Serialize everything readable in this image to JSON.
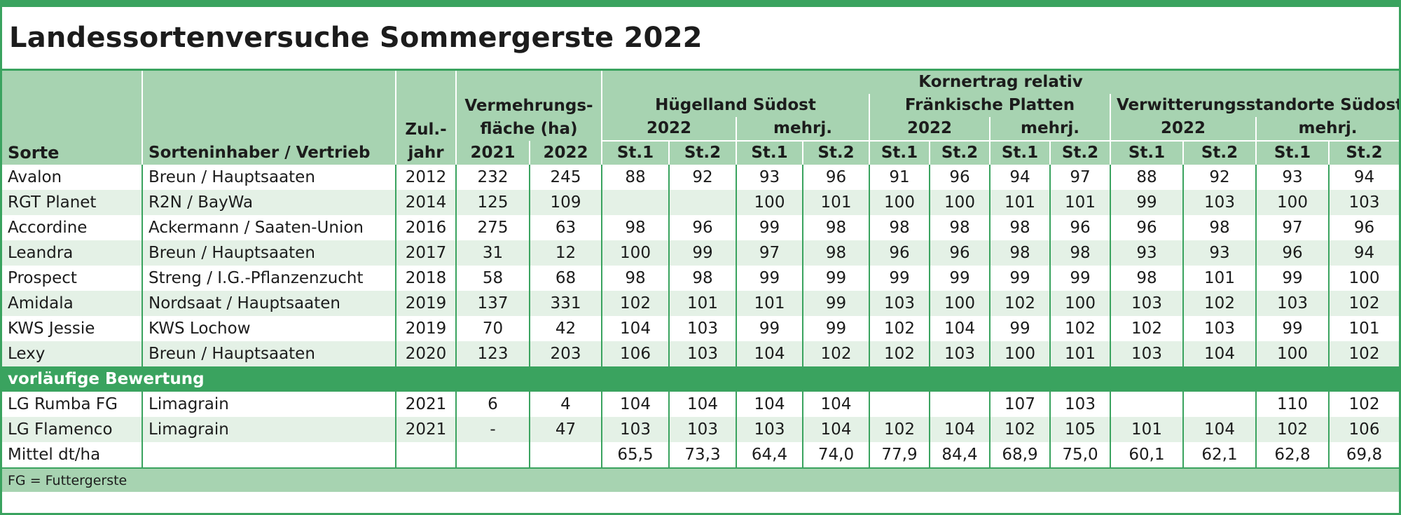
{
  "title": "Landessortenversuche Sommergerste 2022",
  "header": {
    "kornertrag": "Kornertrag  relativ",
    "vermehrung_line1": "Vermehrungs-",
    "vermehrung_line2": "fläche (ha)",
    "zul_line1": "Zul.-",
    "zul_line2": "jahr",
    "sorte": "Sorte",
    "inhaber": "Sorteninhaber / Vertrieb",
    "y2021": "2021",
    "y2022": "2022",
    "regions": [
      {
        "name": "Hügelland Südost",
        "sub_2022": "2022",
        "sub_mehrj": "mehrj."
      },
      {
        "name": "Fränkische Platten",
        "sub_2022": "2022",
        "sub_mehrj": "mehrj."
      },
      {
        "name": "Verwitterungsstandorte Südost",
        "sub_2022": "2022",
        "sub_mehrj": "mehrj."
      }
    ],
    "st1": "St.1",
    "st2": "St.2"
  },
  "rows": [
    {
      "sorte": "Avalon",
      "inhaber": "Breun / Hauptsaaten",
      "jahr": "2012",
      "v2021": "232",
      "v2022": "245",
      "vals": [
        "88",
        "92",
        "93",
        "96",
        "91",
        "96",
        "94",
        "97",
        "88",
        "92",
        "93",
        "94"
      ]
    },
    {
      "sorte": "RGT Planet",
      "inhaber": "R2N /  BayWa",
      "jahr": "2014",
      "v2021": "125",
      "v2022": "109",
      "vals": [
        "",
        "",
        "100",
        "101",
        "100",
        "100",
        "101",
        "101",
        "99",
        "103",
        "100",
        "103"
      ]
    },
    {
      "sorte": "Accordine",
      "inhaber": "Ackermann / Saaten-Union",
      "jahr": "2016",
      "v2021": "275",
      "v2022": "63",
      "vals": [
        "98",
        "96",
        "99",
        "98",
        "98",
        "98",
        "98",
        "96",
        "96",
        "98",
        "97",
        "96"
      ]
    },
    {
      "sorte": "Leandra",
      "inhaber": "Breun / Hauptsaaten",
      "jahr": "2017",
      "v2021": "31",
      "v2022": "12",
      "vals": [
        "100",
        "99",
        "97",
        "98",
        "96",
        "96",
        "98",
        "98",
        "93",
        "93",
        "96",
        "94"
      ]
    },
    {
      "sorte": "Prospect",
      "inhaber": "Streng / I.G.-Pflanzenzucht",
      "jahr": "2018",
      "v2021": "58",
      "v2022": "68",
      "vals": [
        "98",
        "98",
        "99",
        "99",
        "99",
        "99",
        "99",
        "99",
        "98",
        "101",
        "99",
        "100"
      ]
    },
    {
      "sorte": "Amidala",
      "inhaber": "Nordsaat / Hauptsaaten",
      "jahr": "2019",
      "v2021": "137",
      "v2022": "331",
      "vals": [
        "102",
        "101",
        "101",
        "99",
        "103",
        "100",
        "102",
        "100",
        "103",
        "102",
        "103",
        "102"
      ]
    },
    {
      "sorte": "KWS Jessie",
      "inhaber": "KWS Lochow",
      "jahr": "2019",
      "v2021": "70",
      "v2022": "42",
      "vals": [
        "104",
        "103",
        "99",
        "99",
        "102",
        "104",
        "99",
        "102",
        "102",
        "103",
        "99",
        "101"
      ]
    },
    {
      "sorte": "Lexy",
      "inhaber": "Breun / Hauptsaaten",
      "jahr": "2020",
      "v2021": "123",
      "v2022": "203",
      "vals": [
        "106",
        "103",
        "104",
        "102",
        "102",
        "103",
        "100",
        "101",
        "103",
        "104",
        "100",
        "102"
      ]
    }
  ],
  "section_label": "vorläufige Bewertung",
  "rows2": [
    {
      "sorte": "LG Rumba  FG",
      "inhaber": "Limagrain",
      "jahr": "2021",
      "v2021": "6",
      "v2022": "4",
      "vals": [
        "104",
        "104",
        "104",
        "104",
        "",
        "",
        "107",
        "103",
        "",
        "",
        "110",
        "102"
      ]
    },
    {
      "sorte": "LG Flamenco",
      "inhaber": "Limagrain",
      "jahr": "2021",
      "v2021": "-",
      "v2022": "47",
      "vals": [
        "103",
        "103",
        "103",
        "104",
        "102",
        "104",
        "102",
        "105",
        "101",
        "104",
        "102",
        "106"
      ]
    }
  ],
  "mittel": {
    "label": "Mittel  dt/ha",
    "vals": [
      "65,5",
      "73,3",
      "64,4",
      "74,0",
      "77,9",
      "84,4",
      "68,9",
      "75,0",
      "60,1",
      "62,1",
      "62,8",
      "69,8"
    ]
  },
  "footnote": "FG = Futtergerste"
}
